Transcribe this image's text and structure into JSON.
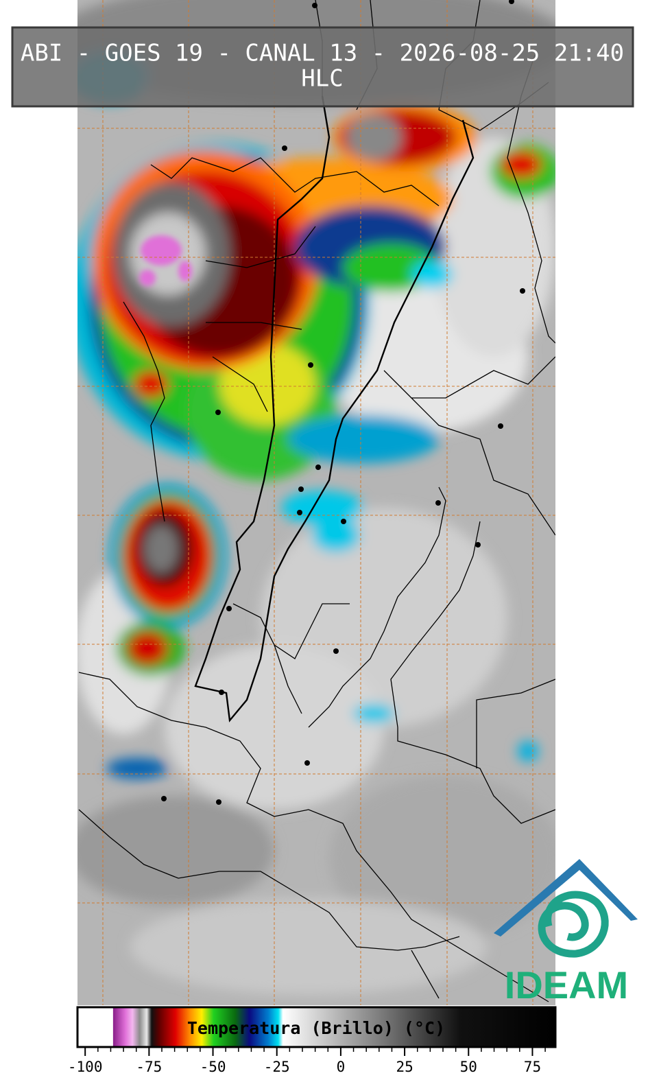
{
  "header": {
    "title": "ABI - GOES 19 - CANAL 13 - 2026-08-25 21:40",
    "subtitle": "HLC"
  },
  "colorbar": {
    "label": "Temperatura (Brillo) (°C)",
    "xlim": [
      -103,
      84
    ],
    "xticks": [
      -100,
      -75,
      -50,
      -25,
      0,
      25,
      50,
      75
    ],
    "xminorticks": [
      -95,
      -90,
      -85,
      -80,
      -70,
      -65,
      -60,
      -55,
      -45,
      -40,
      -35,
      -30,
      -20,
      -15,
      -10,
      -5,
      5,
      10,
      15,
      20,
      30,
      35,
      40,
      45,
      55,
      60,
      65,
      70,
      80
    ]
  },
  "logo": {
    "text": "IDEAM"
  }
}
